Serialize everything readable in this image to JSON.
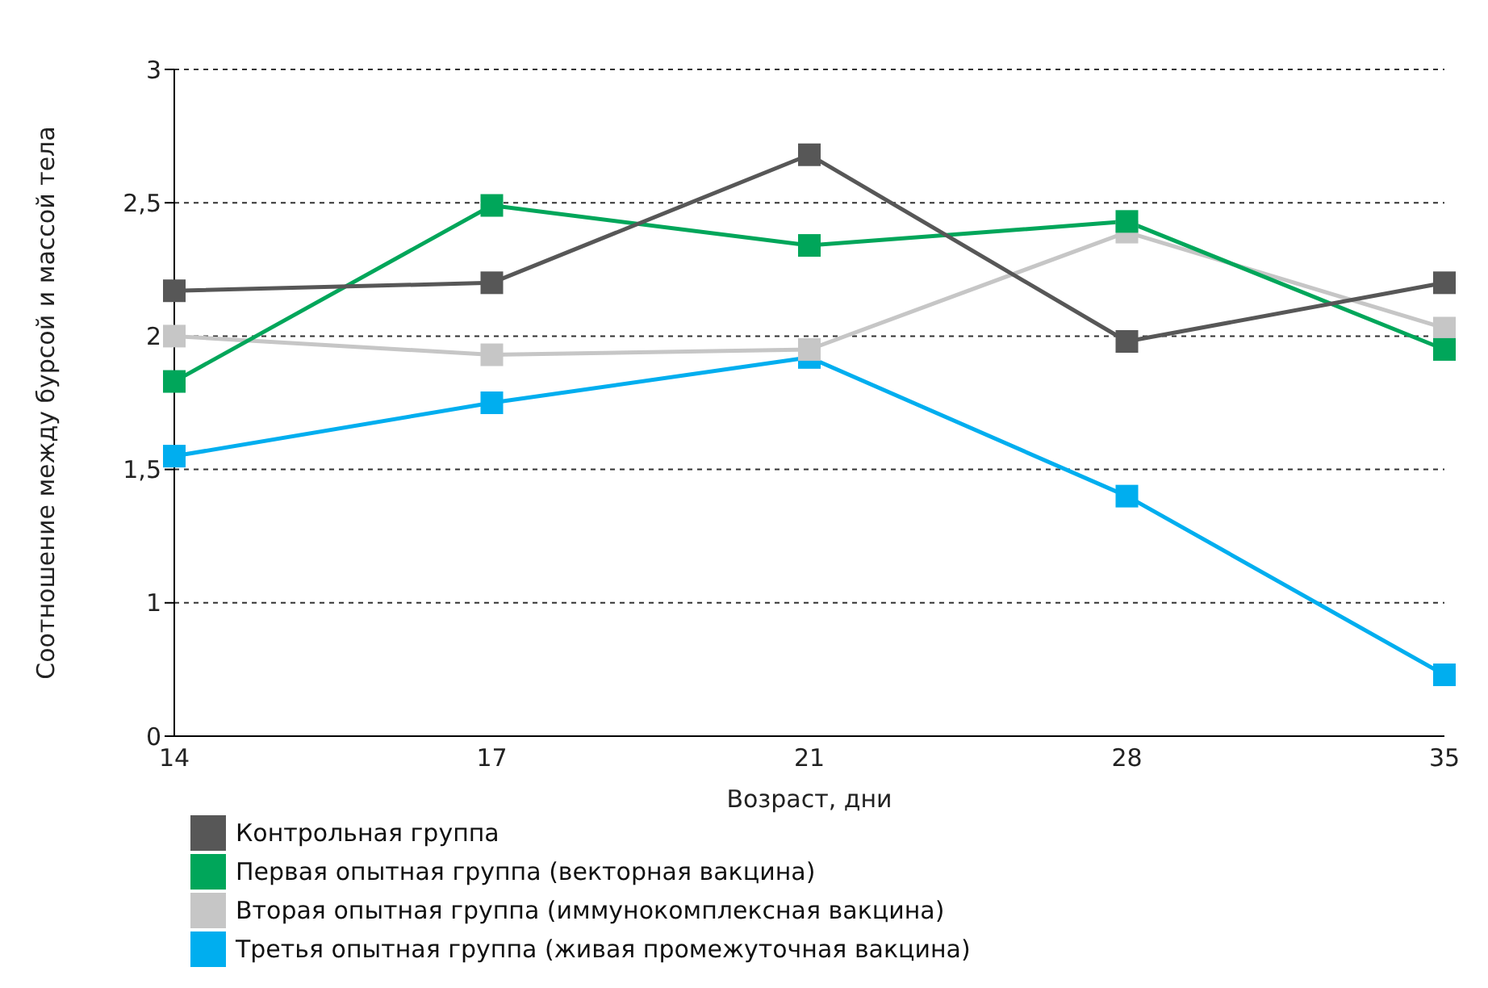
{
  "chart_data": {
    "type": "line",
    "xlabel": "Возраст, дни",
    "ylabel": "Соотношение между бурсой и массой тела",
    "categories": [
      "14",
      "17",
      "21",
      "28",
      "35"
    ],
    "series": [
      {
        "name": "Контрольная группа",
        "color": "#575757",
        "values": [
          2.17,
          2.2,
          2.68,
          1.98,
          2.2
        ]
      },
      {
        "name": "Первая опытная группа (векторная вакцина)",
        "color": "#00a65a",
        "values": [
          1.83,
          2.49,
          2.34,
          2.43,
          1.95
        ]
      },
      {
        "name": "Вторая опытная группа (иммунокомплексная вакцина)",
        "color": "#c6c6c6",
        "values": [
          2.0,
          1.93,
          1.95,
          2.39,
          2.03
        ]
      },
      {
        "name": "Третья опытная группа (живая промежуточная вакцина)",
        "color": "#00aeef",
        "values": [
          1.55,
          1.75,
          1.92,
          1.4,
          0.73
        ]
      }
    ],
    "ylim": [
      0.5,
      3
    ],
    "yticks": [
      {
        "value": 0.5,
        "label": "0"
      },
      1,
      {
        "value": 1.5,
        "label": "1,5"
      },
      2,
      {
        "value": 2.5,
        "label": "2,5"
      },
      3
    ],
    "grid": "y",
    "legend": "bottom",
    "marker": "square",
    "line_style": "solid"
  }
}
